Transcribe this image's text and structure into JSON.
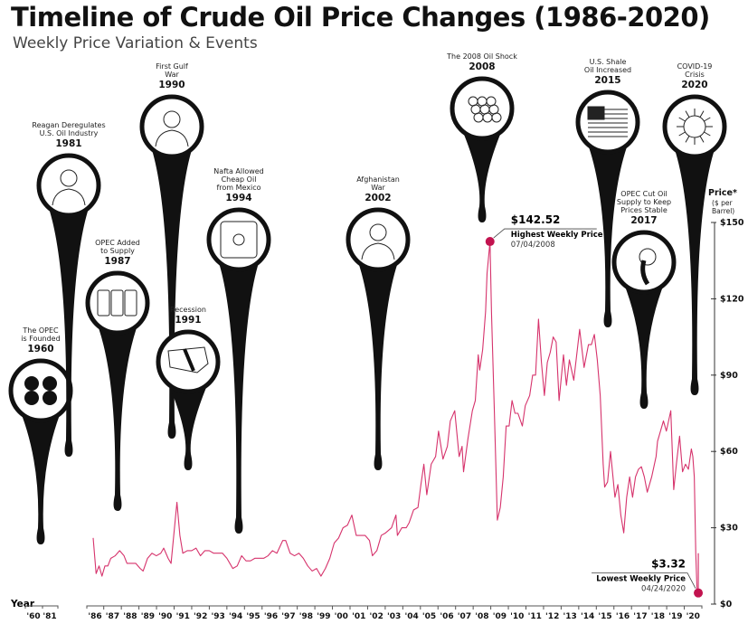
{
  "chart_data": {
    "type": "line",
    "title": "Timeline of Crude Oil Price Changes (1986-2020)",
    "subtitle": "Weekly Price Variation & Events",
    "xlabel": "Year",
    "ylabel": "Price*",
    "ylabel_unit": "($ per Barrel)",
    "ylim": [
      0,
      150
    ],
    "yticks": [
      "$0",
      "$30",
      "$60",
      "$90",
      "$120",
      "$150"
    ],
    "ytick_values": [
      0,
      30,
      60,
      90,
      120,
      150
    ],
    "xticks": [
      "'60",
      "'81",
      "'86",
      "'87",
      "'88",
      "'89",
      "'90",
      "'91",
      "'92",
      "'93",
      "'94",
      "'95",
      "'96",
      "'97",
      "'98",
      "'99",
      "'00",
      "'01",
      "'02",
      "'03",
      "'04",
      "'05",
      "'06",
      "'07",
      "'08",
      "'09",
      "'10",
      "'11",
      "'12",
      "'13",
      "'14",
      "'15",
      "'16",
      "'17",
      "'18",
      "'19",
      "'20"
    ],
    "grid": false,
    "line_color": "#d6336c",
    "marker_color": "#c2134f",
    "series": [
      {
        "points": [
          [
            "1986-01",
            26
          ],
          [
            "1986-03",
            12
          ],
          [
            "1986-05",
            15
          ],
          [
            "1986-07",
            11
          ],
          [
            "1986-09",
            15
          ],
          [
            "1986-11",
            15
          ],
          [
            "1987-01",
            18
          ],
          [
            "1987-04",
            19
          ],
          [
            "1987-07",
            21
          ],
          [
            "1987-10",
            19
          ],
          [
            "1987-12",
            16
          ],
          [
            "1988-03",
            16
          ],
          [
            "1988-06",
            16
          ],
          [
            "1988-09",
            14
          ],
          [
            "1988-11",
            13
          ],
          [
            "1989-02",
            18
          ],
          [
            "1989-05",
            20
          ],
          [
            "1989-08",
            19
          ],
          [
            "1989-11",
            20
          ],
          [
            "1990-01",
            22
          ],
          [
            "1990-04",
            18
          ],
          [
            "1990-06",
            16
          ],
          [
            "1990-08",
            28
          ],
          [
            "1990-10",
            40
          ],
          [
            "1990-12",
            27
          ],
          [
            "1991-02",
            20
          ],
          [
            "1991-05",
            21
          ],
          [
            "1991-08",
            21
          ],
          [
            "1991-11",
            22
          ],
          [
            "1992-02",
            19
          ],
          [
            "1992-05",
            21
          ],
          [
            "1992-08",
            21
          ],
          [
            "1992-11",
            20
          ],
          [
            "1993-02",
            20
          ],
          [
            "1993-05",
            20
          ],
          [
            "1993-08",
            18
          ],
          [
            "1993-12",
            14
          ],
          [
            "1994-03",
            15
          ],
          [
            "1994-06",
            19
          ],
          [
            "1994-09",
            17
          ],
          [
            "1994-12",
            17
          ],
          [
            "1995-03",
            18
          ],
          [
            "1995-06",
            18
          ],
          [
            "1995-09",
            18
          ],
          [
            "1995-12",
            19
          ],
          [
            "1996-03",
            21
          ],
          [
            "1996-06",
            20
          ],
          [
            "1996-10",
            25
          ],
          [
            "1996-12",
            25
          ],
          [
            "1997-03",
            20
          ],
          [
            "1997-06",
            19
          ],
          [
            "1997-09",
            20
          ],
          [
            "1997-12",
            18
          ],
          [
            "1998-03",
            15
          ],
          [
            "1998-06",
            13
          ],
          [
            "1998-09",
            14
          ],
          [
            "1998-12",
            11
          ],
          [
            "1999-03",
            14
          ],
          [
            "1999-06",
            18
          ],
          [
            "1999-09",
            24
          ],
          [
            "1999-12",
            26
          ],
          [
            "2000-03",
            30
          ],
          [
            "2000-06",
            31
          ],
          [
            "2000-09",
            35
          ],
          [
            "2000-12",
            27
          ],
          [
            "2001-03",
            27
          ],
          [
            "2001-06",
            27
          ],
          [
            "2001-09",
            25
          ],
          [
            "2001-11",
            19
          ],
          [
            "2002-02",
            21
          ],
          [
            "2002-05",
            27
          ],
          [
            "2002-08",
            28
          ],
          [
            "2002-12",
            30
          ],
          [
            "2003-03",
            35
          ],
          [
            "2003-04",
            27
          ],
          [
            "2003-07",
            30
          ],
          [
            "2003-10",
            30
          ],
          [
            "2003-12",
            32
          ],
          [
            "2004-03",
            37
          ],
          [
            "2004-06",
            38
          ],
          [
            "2004-08",
            47
          ],
          [
            "2004-10",
            55
          ],
          [
            "2004-12",
            43
          ],
          [
            "2005-03",
            55
          ],
          [
            "2005-06",
            58
          ],
          [
            "2005-08",
            68
          ],
          [
            "2005-11",
            57
          ],
          [
            "2006-02",
            62
          ],
          [
            "2006-04",
            72
          ],
          [
            "2006-07",
            76
          ],
          [
            "2006-10",
            58
          ],
          [
            "2006-12",
            62
          ],
          [
            "2007-01",
            52
          ],
          [
            "2007-04",
            65
          ],
          [
            "2007-07",
            76
          ],
          [
            "2007-09",
            80
          ],
          [
            "2007-11",
            98
          ],
          [
            "2007-12",
            92
          ],
          [
            "2008-02",
            100
          ],
          [
            "2008-04",
            115
          ],
          [
            "2008-05",
            130
          ],
          [
            "2008-07",
            142.52
          ],
          [
            "2008-08",
            115
          ],
          [
            "2008-10",
            75
          ],
          [
            "2008-12",
            33
          ],
          [
            "2009-02",
            38
          ],
          [
            "2009-04",
            50
          ],
          [
            "2009-06",
            70
          ],
          [
            "2009-08",
            70
          ],
          [
            "2009-10",
            80
          ],
          [
            "2009-12",
            75
          ],
          [
            "2010-02",
            75
          ],
          [
            "2010-05",
            70
          ],
          [
            "2010-07",
            78
          ],
          [
            "2010-10",
            82
          ],
          [
            "2010-12",
            90
          ],
          [
            "2011-02",
            90
          ],
          [
            "2011-04",
            112
          ],
          [
            "2011-06",
            95
          ],
          [
            "2011-08",
            82
          ],
          [
            "2011-10",
            95
          ],
          [
            "2011-12",
            99
          ],
          [
            "2012-02",
            105
          ],
          [
            "2012-04",
            103
          ],
          [
            "2012-06",
            80
          ],
          [
            "2012-09",
            98
          ],
          [
            "2012-11",
            86
          ],
          [
            "2013-01",
            96
          ],
          [
            "2013-04",
            88
          ],
          [
            "2013-06",
            98
          ],
          [
            "2013-08",
            108
          ],
          [
            "2013-11",
            93
          ],
          [
            "2014-02",
            102
          ],
          [
            "2014-04",
            102
          ],
          [
            "2014-06",
            106
          ],
          [
            "2014-08",
            96
          ],
          [
            "2014-10",
            82
          ],
          [
            "2014-12",
            55
          ],
          [
            "2015-01",
            46
          ],
          [
            "2015-03",
            48
          ],
          [
            "2015-05",
            60
          ],
          [
            "2015-08",
            42
          ],
          [
            "2015-10",
            47
          ],
          [
            "2015-12",
            35
          ],
          [
            "2016-02",
            28
          ],
          [
            "2016-04",
            42
          ],
          [
            "2016-06",
            50
          ],
          [
            "2016-08",
            42
          ],
          [
            "2016-10",
            50
          ],
          [
            "2016-12",
            53
          ],
          [
            "2017-02",
            54
          ],
          [
            "2017-04",
            50
          ],
          [
            "2017-06",
            44
          ],
          [
            "2017-09",
            50
          ],
          [
            "2017-12",
            58
          ],
          [
            "2018-01",
            64
          ],
          [
            "2018-05",
            72
          ],
          [
            "2018-07",
            68
          ],
          [
            "2018-10",
            76
          ],
          [
            "2018-12",
            45
          ],
          [
            "2019-02",
            56
          ],
          [
            "2019-04",
            66
          ],
          [
            "2019-06",
            52
          ],
          [
            "2019-08",
            55
          ],
          [
            "2019-10",
            53
          ],
          [
            "2019-12",
            61
          ],
          [
            "2020-01",
            58
          ],
          [
            "2020-02",
            50
          ],
          [
            "2020-03",
            20
          ],
          [
            "2020-04",
            3.32
          ]
        ]
      }
    ],
    "annotations": [
      {
        "value": "$142.52",
        "label": "Highest Weekly Price",
        "date": "07/04/2008",
        "x": "2008-07",
        "y": 142.52
      },
      {
        "value": "$3.32",
        "label": "Lowest Weekly Price",
        "date": "04/24/2020",
        "x": "2020-04",
        "y": 3.32
      }
    ],
    "events": [
      {
        "lines": [
          "The OPEC",
          "is Founded"
        ],
        "year": "1960",
        "icon": "opec-logo-icon"
      },
      {
        "lines": [
          "Reagan Deregulates",
          "U.S. Oil Industry"
        ],
        "year": "1981",
        "icon": "reagan-portrait-icon"
      },
      {
        "lines": [
          "OPEC Added",
          "to Supply"
        ],
        "year": "1987",
        "icon": "oil-barrels-icon"
      },
      {
        "lines": [
          "First Gulf",
          "War"
        ],
        "year": "1990",
        "icon": "saddam-portrait-icon"
      },
      {
        "lines": [
          "Recession"
        ],
        "year": "1991",
        "icon": "us-map-dollar-decline-icon"
      },
      {
        "lines": [
          "Nafta Allowed",
          "Cheap Oil",
          "from Mexico"
        ],
        "year": "1994",
        "icon": "mexico-barrel-icon"
      },
      {
        "lines": [
          "Afghanistan",
          "War"
        ],
        "year": "2002",
        "icon": "afghanistan-soldier-icon"
      },
      {
        "lines": [
          "The 2008 Oil Shock"
        ],
        "year": "2008",
        "icon": "pipes-stack-icon"
      },
      {
        "lines": [
          "U.S. Shale",
          "Oil Increased"
        ],
        "year": "2015",
        "icon": "us-flag-pumpjack-icon"
      },
      {
        "lines": [
          "OPEC Cut Oil",
          "Supply to Keep",
          "Prices Stable"
        ],
        "year": "2017",
        "icon": "oil-pipe-pour-icon"
      },
      {
        "lines": [
          "COVID-19",
          "Crisis"
        ],
        "year": "2020",
        "icon": "coronavirus-icon"
      }
    ]
  }
}
